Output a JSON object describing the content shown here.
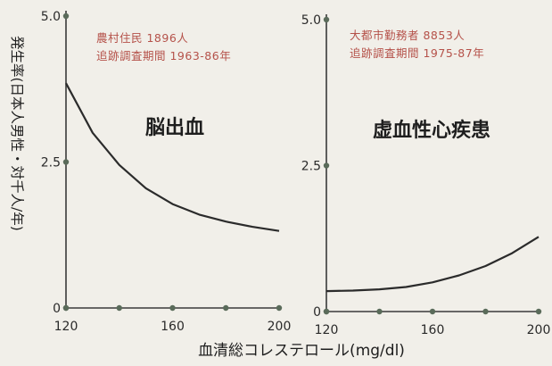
{
  "y_axis_label": "発生率(日本人男性・対千人/年)",
  "x_axis_label": "血清総コレステロール(mg/dl)",
  "chart_data": [
    {
      "type": "line",
      "title": "脳出血",
      "annotation": [
        "農村住民 1896人",
        "追跡調査期間 1963-86年"
      ],
      "x": [
        120,
        130,
        140,
        150,
        160,
        170,
        180,
        190,
        200
      ],
      "series": [
        {
          "values": [
            3.85,
            3.0,
            2.45,
            2.05,
            1.78,
            1.6,
            1.48,
            1.39,
            1.32
          ]
        }
      ],
      "xlim": [
        120,
        200
      ],
      "ylim": [
        0,
        5.0
      ],
      "x_ticks": [
        "120",
        "160",
        "200"
      ],
      "y_ticks": [
        "0",
        "2.5",
        "5.0"
      ],
      "line_color": "#2b2b2b"
    },
    {
      "type": "line",
      "title": "虚血性心疾患",
      "annotation": [
        "大都市勤務者 8853人",
        "追跡調査期間 1975-87年"
      ],
      "x": [
        120,
        130,
        140,
        150,
        160,
        170,
        180,
        190,
        200
      ],
      "series": [
        {
          "values": [
            0.35,
            0.36,
            0.38,
            0.42,
            0.5,
            0.62,
            0.78,
            1.0,
            1.28
          ]
        }
      ],
      "xlim": [
        120,
        200
      ],
      "ylim": [
        0,
        5.0
      ],
      "x_ticks": [
        "120",
        "160",
        "200"
      ],
      "y_ticks": [
        "0",
        "2.5",
        "5.0"
      ],
      "line_color": "#2b2b2b"
    }
  ]
}
